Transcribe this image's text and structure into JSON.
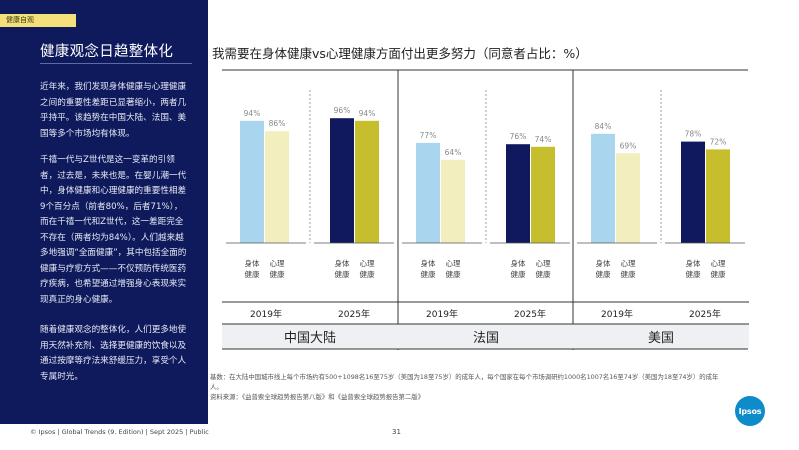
{
  "section_tag": "健康自观",
  "sidebar": {
    "title": "健康观念日趋整体化",
    "paragraphs": [
      "近年来，我们发现身体健康与心理健康之间的重要性差距已显著缩小，两者几乎持平。该趋势在中国大陆、法国、美国等多个市场均有体现。",
      "千禧一代与Z世代是这一变革的引领者，过去是，未来也是。在婴儿潮一代中，身体健康和心理健康的重要性相差9个百分点（前者80%，后者71%），而在千禧一代和Z世代，这一差距完全不存在（两者均为84%）。人们越来越多地强调“全面健康”，其中包括全面的健康与疗愈方式——不仅预防传统医药疗疾病，也希望通过增强身心表现来实现真正的身心健康。",
      "随着健康观念的整体化，人们更多地使用天然补充剂、选择更健康的饮食以及通过按摩等疗法来舒缓压力，享受个人专属时光。"
    ]
  },
  "chart_data": {
    "type": "bar",
    "title": "我需要在身体健康vs心理健康方面付出更多努力（同意者占比：%）",
    "series": [
      {
        "name": "身体健康",
        "values": [
          94,
          96,
          77,
          76,
          84,
          78
        ]
      },
      {
        "name": "心理健康",
        "values": [
          86,
          94,
          64,
          74,
          69,
          72
        ]
      }
    ],
    "groups": [
      {
        "market": "中国大陆",
        "years": [
          "2019年",
          "2025年"
        ],
        "physical": [
          94,
          96
        ],
        "mental": [
          86,
          94
        ]
      },
      {
        "market": "法国",
        "years": [
          "2019年",
          "2025年"
        ],
        "physical": [
          77,
          76
        ],
        "mental": [
          64,
          74
        ]
      },
      {
        "market": "美国",
        "years": [
          "2019年",
          "2025年"
        ],
        "physical": [
          84,
          78
        ],
        "mental": [
          69,
          72
        ]
      }
    ],
    "value_labels": {
      "physical": [
        [
          "94%",
          "96%"
        ],
        [
          "77%",
          "76%"
        ],
        [
          "84%",
          "78%"
        ]
      ],
      "mental": [
        [
          "86%",
          "94%"
        ],
        [
          "64%",
          "74%"
        ],
        [
          "69%",
          "72%"
        ]
      ]
    },
    "category_labels": {
      "physical": "身体健康",
      "mental": "心理健康"
    },
    "colors": {
      "physical_2019": "#a9d6ee",
      "mental_2019": "#f3eebd",
      "physical_2025": "#11195e",
      "mental_2025": "#c7be2e"
    },
    "ylim": [
      0,
      100
    ]
  },
  "notes": {
    "base": "基数：在大陆中国城市线上每个市场约有500+1098名16至75岁（美国为18至75岁）的成年人，每个国家在每个市场调研约1000名1007名16至74岁（美国为18至74岁）的成年人。",
    "source": "资料来源：《益普索全球趋势报告第八版》和《益普索全球趋势报告第二版》"
  },
  "footer": "© Ipsos | Global Trends (9. Edition) | Sept 2025 | Public",
  "page_number": "31",
  "logo": "Ipsos"
}
